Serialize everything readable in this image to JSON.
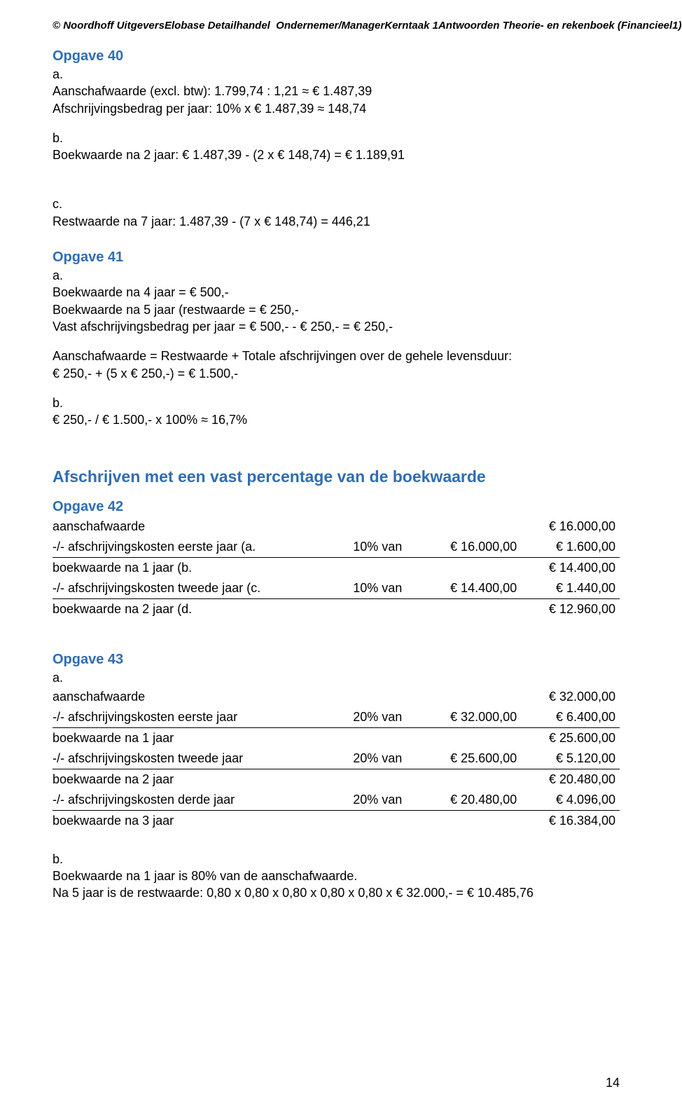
{
  "header": {
    "publisher": "© Noordhoff Uitgevers",
    "book": "Elobase Detailhandel  Ondernemer/Manager",
    "task": "Kerntaak 1",
    "answers": "Antwoorden Theorie- en rekenboek (Financieel1)"
  },
  "opgave40": {
    "title": "Opgave  40",
    "a_label": "a.",
    "a1": "Aanschafwaarde (excl. btw): 1.799,74 : 1,21 ≈ € 1.487,39",
    "a2": "Afschrijvingsbedrag per jaar: 10% x € 1.487,39 ≈ 148,74",
    "b_label": "b.",
    "b1": "Boekwaarde na 2 jaar: € 1.487,39 - (2 x € 148,74) = € 1.189,91",
    "c_label": "c.",
    "c1": "Restwaarde na 7 jaar: 1.487,39 - (7 x € 148,74) = 446,21"
  },
  "opgave41": {
    "title": "Opgave  41",
    "a_label": "a.",
    "a1": "Boekwaarde na 4 jaar = € 500,-",
    "a2": "Boekwaarde na 5 jaar (restwaarde = € 250,-",
    "a3": "Vast afschrijvingsbedrag per jaar = € 500,-  - € 250,- = € 250,-",
    "mid1": "Aanschafwaarde = Restwaarde + Totale afschrijvingen over de gehele levensduur:",
    "mid2": "€ 250,- + (5 x € 250,-) = € 1.500,-",
    "b_label": "b.",
    "b1": "€ 250,- / € 1.500,- x 100% ≈ 16,7%"
  },
  "section2_title": "Afschrijven met een vast percentage van de boekwaarde",
  "opgave42": {
    "title": "Opgave  42",
    "rows": [
      {
        "desc": "aanschafwaarde",
        "pct": "",
        "base": "",
        "amount": "€ 16.000,00"
      },
      {
        "desc": "-/- afschrijvingskosten eerste jaar (a.",
        "pct": "10% van",
        "base": "€ 16.000,00",
        "amount": "€ 1.600,00"
      },
      {
        "desc": "boekwaarde na 1 jaar (b.",
        "pct": "",
        "base": "",
        "amount": "€ 14.400,00"
      },
      {
        "desc": "-/- afschrijvingskosten tweede jaar (c.",
        "pct": "10% van",
        "base": "€ 14.400,00",
        "amount": "€ 1.440,00"
      },
      {
        "desc": "boekwaarde na 2 jaar (d.",
        "pct": "",
        "base": "",
        "amount": "€ 12.960,00"
      }
    ]
  },
  "opgave43": {
    "title": "Opgave  43",
    "a_label": "a.",
    "rows": [
      {
        "desc": "aanschafwaarde",
        "pct": "",
        "base": "",
        "amount": "€ 32.000,00"
      },
      {
        "desc": "-/- afschrijvingskosten eerste jaar",
        "pct": "20% van",
        "base": "€ 32.000,00",
        "amount": "€ 6.400,00"
      },
      {
        "desc": "boekwaarde na 1 jaar",
        "pct": "",
        "base": "",
        "amount": "€ 25.600,00"
      },
      {
        "desc": "-/- afschrijvingskosten tweede jaar",
        "pct": "20% van",
        "base": "€ 25.600,00",
        "amount": "€ 5.120,00"
      },
      {
        "desc": "boekwaarde na 2 jaar",
        "pct": "",
        "base": "",
        "amount": "€ 20.480,00"
      },
      {
        "desc": "-/- afschrijvingskosten derde jaar",
        "pct": "20% van",
        "base": "€ 20.480,00",
        "amount": "€ 4.096,00"
      },
      {
        "desc": "boekwaarde na 3 jaar",
        "pct": "",
        "base": "",
        "amount": "€ 16.384,00"
      }
    ],
    "b_label": "b.",
    "b1": "Boekwaarde na 1 jaar is 80% van de aanschafwaarde.",
    "b2": "Na 5 jaar is de restwaarde: 0,80 x 0,80 x 0,80 x 0,80 x 0,80 x € 32.000,- = € 10.485,76"
  },
  "page_number": "14"
}
